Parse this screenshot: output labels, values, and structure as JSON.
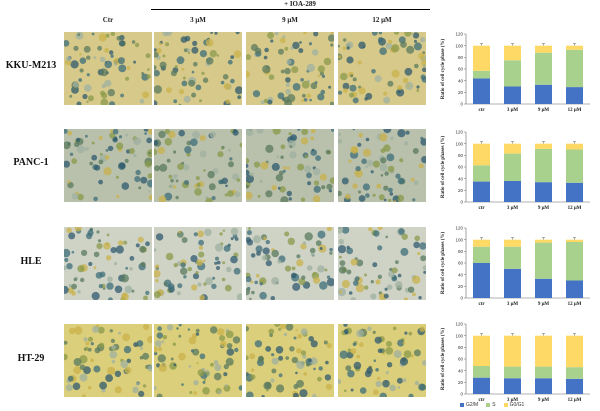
{
  "header": {
    "treatment": "+ IOA-289",
    "columns": [
      "Ctr",
      "3 μM",
      "9 μM",
      "12 μM"
    ]
  },
  "rows": [
    {
      "label": "KKU-M213",
      "bg": "#d6c98a"
    },
    {
      "label": "PANC-1",
      "bg": "#b9c0ac"
    },
    {
      "label": "HLE",
      "bg": "#cfd3c6"
    },
    {
      "label": "HT-29",
      "bg": "#dccf7c"
    }
  ],
  "colors": {
    "g2m": "#4472c4",
    "s": "#a9d18e",
    "g0g1": "#ffd966"
  },
  "legend": [
    "G2/M",
    "S",
    "G0/G1"
  ],
  "chart_data": [
    {
      "type": "bar",
      "categories": [
        "ctr",
        "3 μM",
        "9 μM",
        "12 μM"
      ],
      "ylabel": "Ratio of cell cycle phase (%)",
      "ylim": [
        0,
        120
      ],
      "yticks": [
        "0",
        "20",
        "40",
        "60",
        "80",
        "100",
        "120"
      ],
      "series": [
        {
          "name": "G2/M",
          "values": [
            44,
            30,
            33,
            29
          ]
        },
        {
          "name": "S",
          "values": [
            13,
            45,
            55,
            64
          ]
        },
        {
          "name": "G0/G1",
          "values": [
            43,
            25,
            12,
            7
          ]
        }
      ]
    },
    {
      "type": "bar",
      "categories": [
        "ctr",
        "3 μM",
        "9 μM",
        "12 μM"
      ],
      "ylabel": "Ratio of cell cycle phases (%)",
      "ylim": [
        0,
        120
      ],
      "yticks": [
        "0",
        "20",
        "40",
        "60",
        "80",
        "100",
        "120"
      ],
      "series": [
        {
          "name": "G2/M",
          "values": [
            35,
            36,
            34,
            33
          ]
        },
        {
          "name": "S",
          "values": [
            28,
            47,
            57,
            57
          ]
        },
        {
          "name": "G0/G1",
          "values": [
            37,
            17,
            9,
            10
          ]
        }
      ]
    },
    {
      "type": "bar",
      "categories": [
        "ctr",
        "3 μM",
        "9 μM",
        "12 μM"
      ],
      "ylabel": "Ratio of cell cycle phases (%)",
      "ylim": [
        0,
        120
      ],
      "yticks": [
        "0",
        "20",
        "40",
        "60",
        "80",
        "100",
        "120"
      ],
      "series": [
        {
          "name": "G2/M",
          "values": [
            60,
            50,
            33,
            30
          ]
        },
        {
          "name": "S",
          "values": [
            28,
            38,
            62,
            66
          ]
        },
        {
          "name": "G0/G1",
          "values": [
            12,
            12,
            5,
            4
          ]
        }
      ]
    },
    {
      "type": "bar",
      "categories": [
        "ctr",
        "3 μM",
        "9 μM",
        "12 μM"
      ],
      "ylabel": "Ratio of cell cycle phases (%)",
      "ylim": [
        0,
        120
      ],
      "yticks": [
        "0",
        "20",
        "40",
        "60",
        "80",
        "100",
        "120"
      ],
      "series": [
        {
          "name": "G2/M",
          "values": [
            28,
            27,
            27,
            26
          ]
        },
        {
          "name": "S",
          "values": [
            20,
            20,
            20,
            20
          ]
        },
        {
          "name": "G0/G1",
          "values": [
            52,
            53,
            53,
            54
          ]
        }
      ]
    }
  ]
}
